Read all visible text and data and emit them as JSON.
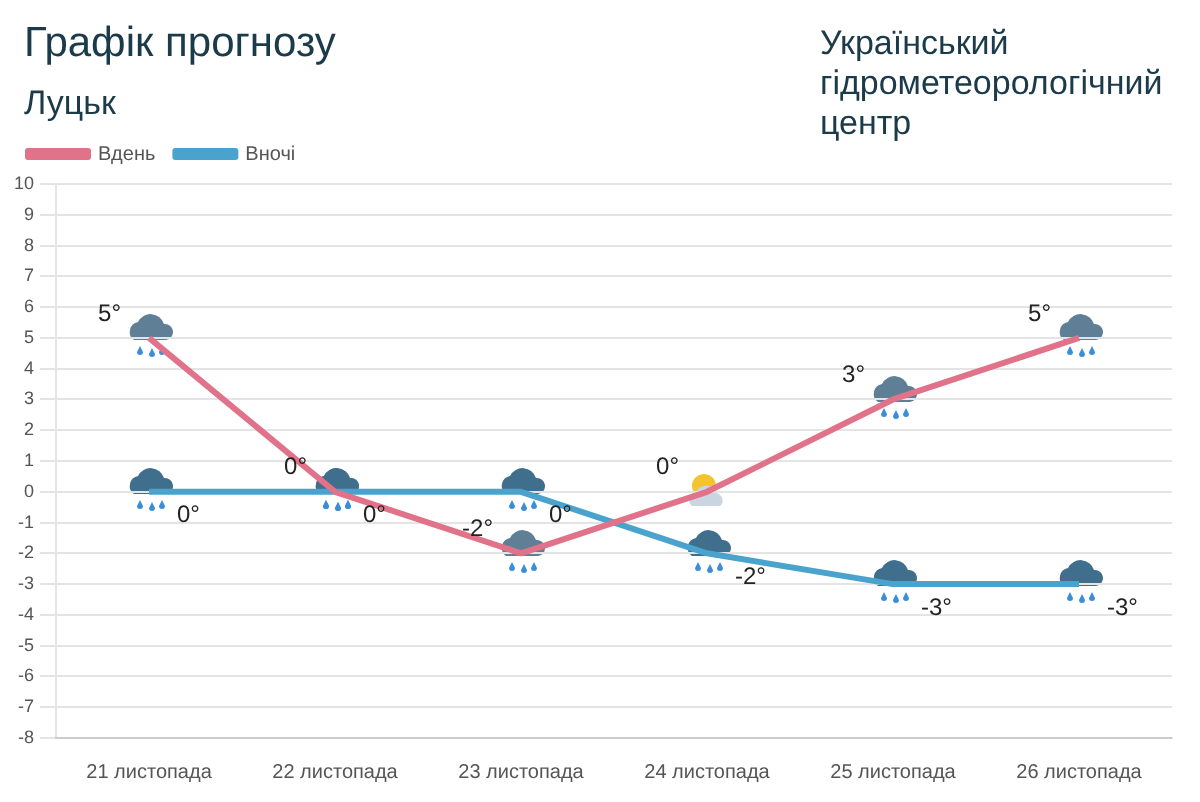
{
  "chart_data": {
    "type": "line",
    "title": "Графік прогнозу",
    "subtitle": "Луцьк",
    "annotations": [
      "Український гідрометеорологічний центр"
    ],
    "categories": [
      "21 листопада",
      "22 листопада",
      "23 листопада",
      "24 листопада",
      "25 листопада",
      "26 листопада"
    ],
    "series": [
      {
        "name": "Вдень",
        "color": "#e0728a",
        "values": [
          5,
          0,
          -2,
          0,
          3,
          5
        ],
        "value_labels": [
          "5°",
          "0°",
          "-2°",
          "0°",
          "3°",
          "5°"
        ]
      },
      {
        "name": "Вночі",
        "color": "#4aa3cc",
        "values": [
          0,
          0,
          0,
          -2,
          -3,
          -3
        ],
        "value_labels": [
          "0°",
          "0°",
          "0°",
          "-2°",
          "-3°",
          "-3°"
        ]
      }
    ],
    "ylim": [
      -8,
      10
    ],
    "yticks": [
      -8,
      -7,
      -6,
      -5,
      -4,
      -3,
      -2,
      -1,
      0,
      1,
      2,
      3,
      4,
      5,
      6,
      7,
      8,
      9,
      10
    ],
    "grid": "y",
    "legend": "top left",
    "marker": "none",
    "line_style": "solid"
  }
}
